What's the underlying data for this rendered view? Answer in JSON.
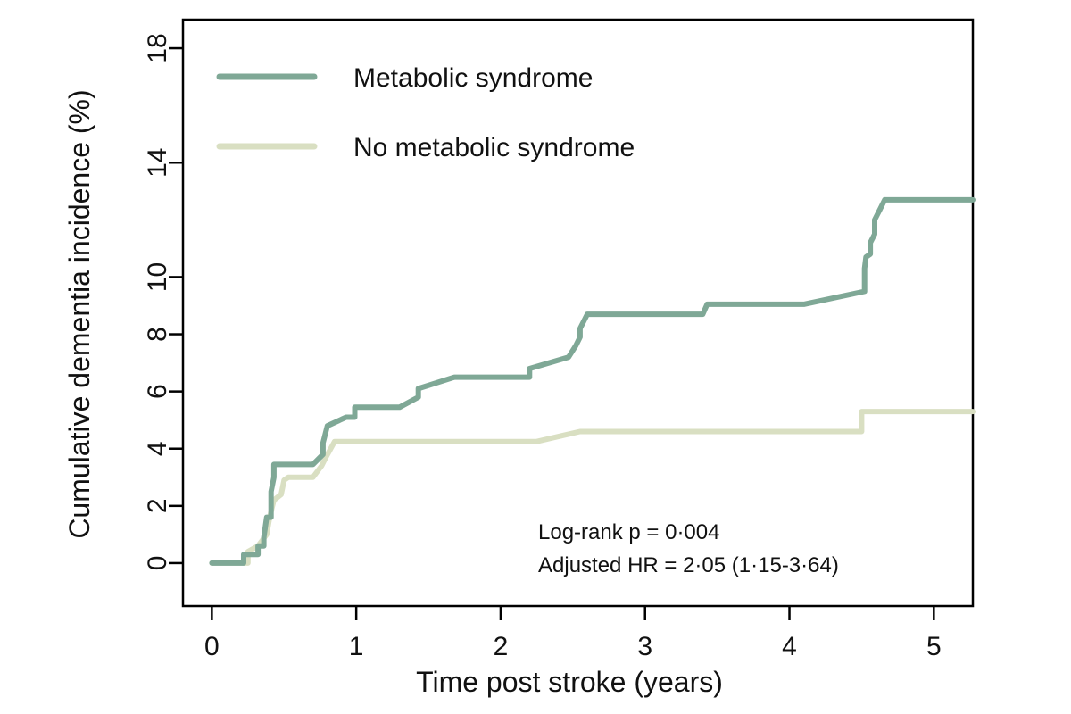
{
  "chart_data": {
    "type": "line",
    "step": true,
    "title": "",
    "xlabel": "Time post stroke (years)",
    "ylabel": "Cumulative dementia incidence (%)",
    "xlim": [
      -0.2,
      5.27
    ],
    "ylim": [
      -1.5,
      19
    ],
    "xticks": [
      0,
      1,
      2,
      3,
      4,
      5
    ],
    "yticks": [
      0,
      2,
      4,
      6,
      8,
      10,
      14,
      18
    ],
    "grid": false,
    "legend_position": "top-left",
    "series": [
      {
        "name": "Metabolic syndrome",
        "color": "#7fa896",
        "points": [
          [
            0,
            0
          ],
          [
            0.22,
            0
          ],
          [
            0.22,
            0.3
          ],
          [
            0.32,
            0.3
          ],
          [
            0.32,
            0.6
          ],
          [
            0.36,
            0.6
          ],
          [
            0.36,
            0.9
          ],
          [
            0.38,
            1.6
          ],
          [
            0.41,
            1.6
          ],
          [
            0.41,
            2.5
          ],
          [
            0.43,
            3.0
          ],
          [
            0.43,
            3.45
          ],
          [
            0.7,
            3.45
          ],
          [
            0.77,
            3.8
          ],
          [
            0.77,
            4.2
          ],
          [
            0.8,
            4.8
          ],
          [
            0.93,
            5.1
          ],
          [
            0.99,
            5.1
          ],
          [
            0.99,
            5.45
          ],
          [
            1.3,
            5.45
          ],
          [
            1.43,
            5.8
          ],
          [
            1.43,
            6.1
          ],
          [
            1.68,
            6.5
          ],
          [
            2.2,
            6.5
          ],
          [
            2.2,
            6.8
          ],
          [
            2.47,
            7.2
          ],
          [
            2.52,
            7.6
          ],
          [
            2.55,
            7.9
          ],
          [
            2.55,
            8.2
          ],
          [
            2.6,
            8.7
          ],
          [
            3.4,
            8.7
          ],
          [
            3.43,
            9.05
          ],
          [
            4.1,
            9.05
          ],
          [
            4.52,
            9.5
          ],
          [
            4.52,
            10.3
          ],
          [
            4.53,
            10.7
          ],
          [
            4.56,
            10.8
          ],
          [
            4.56,
            11.2
          ],
          [
            4.59,
            11.5
          ],
          [
            4.59,
            12.0
          ],
          [
            4.63,
            12.4
          ],
          [
            4.66,
            12.7
          ],
          [
            5.27,
            12.7
          ]
        ]
      },
      {
        "name": "No metabolic syndrome",
        "color": "#d9dfc2",
        "points": [
          [
            0,
            0
          ],
          [
            0.25,
            0
          ],
          [
            0.25,
            0.4
          ],
          [
            0.32,
            0.6
          ],
          [
            0.38,
            1.0
          ],
          [
            0.4,
            1.6
          ],
          [
            0.43,
            2.2
          ],
          [
            0.48,
            2.4
          ],
          [
            0.5,
            2.9
          ],
          [
            0.53,
            3.0
          ],
          [
            0.7,
            3.0
          ],
          [
            0.76,
            3.4
          ],
          [
            0.79,
            3.7
          ],
          [
            0.85,
            4.25
          ],
          [
            2.25,
            4.25
          ],
          [
            2.55,
            4.6
          ],
          [
            4.5,
            4.6
          ],
          [
            4.5,
            5.3
          ],
          [
            5.27,
            5.3
          ]
        ]
      }
    ],
    "annotations": [
      "Log-rank p = 0·004",
      "Adjusted HR = 2·05 (1·15-3·64)"
    ]
  }
}
